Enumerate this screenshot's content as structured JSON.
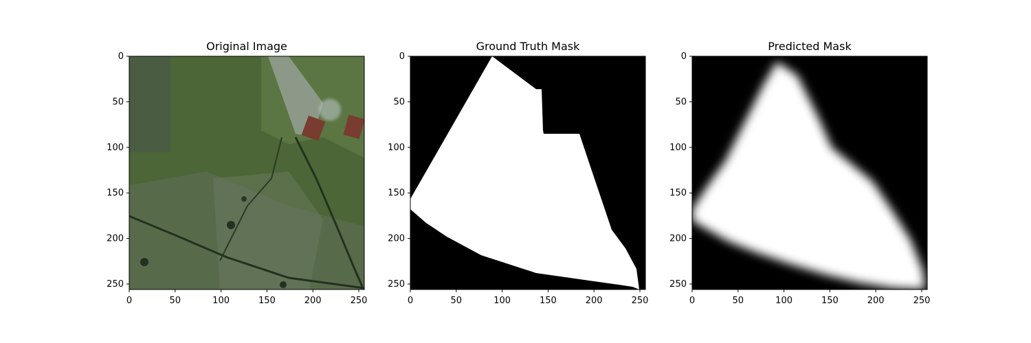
{
  "panels": [
    {
      "title": "Original Image",
      "kind": "photo",
      "x_ticks": [
        "0",
        "50",
        "100",
        "150",
        "200",
        "250"
      ],
      "y_ticks": [
        "0",
        "50",
        "100",
        "150",
        "200",
        "250"
      ],
      "x_range": [
        0,
        256
      ],
      "y_range": [
        0,
        256
      ]
    },
    {
      "title": "Ground Truth Mask",
      "kind": "mask",
      "x_ticks": [
        "0",
        "50",
        "100",
        "150",
        "200",
        "250"
      ],
      "y_ticks": [
        "0",
        "50",
        "100",
        "150",
        "200",
        "250"
      ],
      "x_range": [
        0,
        256
      ],
      "y_range": [
        0,
        256
      ]
    },
    {
      "title": "Predicted Mask",
      "kind": "predicted",
      "x_ticks": [
        "0",
        "50",
        "100",
        "150",
        "200",
        "250"
      ],
      "y_ticks": [
        "0",
        "50",
        "100",
        "150",
        "200",
        "250"
      ],
      "x_range": [
        0,
        256
      ],
      "y_range": [
        0,
        256
      ]
    }
  ],
  "colors": {
    "mask_background": "#000000",
    "mask_foreground": "#ffffff",
    "field_green": "#4c6637",
    "field_shadow": "#3a5030",
    "farm_gray": "#9aa39a",
    "roof_red": "#7a3b30"
  }
}
